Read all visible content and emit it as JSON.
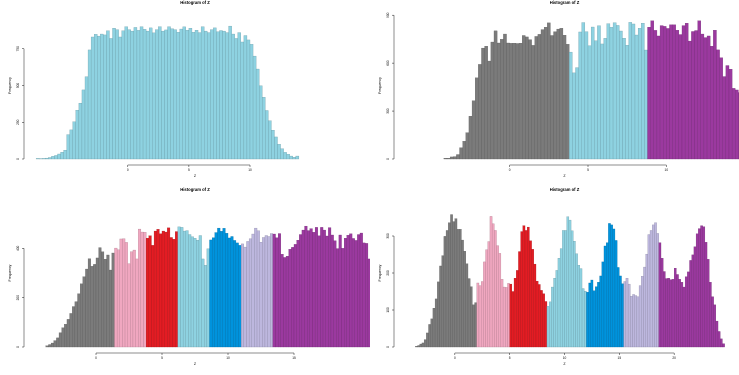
{
  "chart_data": [
    {
      "type": "bar",
      "title": "Histogram of Z",
      "xlabel": "Z",
      "ylabel": "Frequency",
      "xlim": [
        -8,
        19
      ],
      "ylim": [
        0,
        1000
      ],
      "xticks": [
        0,
        5,
        10
      ],
      "xtick_labels": [
        "0",
        "5",
        "10"
      ],
      "yticks": [
        0,
        250,
        500,
        750
      ],
      "ytick_labels": [
        "0",
        "250",
        "500",
        "750"
      ],
      "bin_width": 0.25,
      "bin_start": -7.5,
      "colors": [
        "#8ed2e1"
      ],
      "color_breaks": [],
      "values": [
        4,
        3,
        4,
        6,
        10,
        18,
        24,
        34,
        46,
        60,
        166,
        198,
        253,
        332,
        380,
        470,
        560,
        742,
        830,
        848,
        836,
        850,
        844,
        872,
        820,
        890,
        880,
        830,
        872,
        900,
        880,
        870,
        895,
        875,
        900,
        882,
        870,
        892,
        858,
        880,
        900,
        870,
        878,
        900,
        886,
        880,
        862,
        884,
        899,
        876,
        890,
        862,
        876,
        860,
        900,
        870,
        860,
        880,
        892,
        866,
        874,
        870,
        860,
        904,
        850,
        820,
        860,
        796,
        840,
        810,
        780,
        700,
        612,
        498,
        420,
        330,
        260,
        196,
        150,
        100,
        70,
        45,
        32,
        20,
        12,
        20
      ]
    },
    {
      "type": "bar",
      "title": "Histogram of Z",
      "xlabel": "Z",
      "ylabel": "Frequency",
      "xlim": [
        -7,
        14
      ],
      "ylim": [
        0,
        920
      ],
      "xticks": [
        0,
        5,
        10
      ],
      "xtick_labels": [
        "0",
        "5",
        "10"
      ],
      "yticks": [
        0,
        300,
        600,
        900
      ],
      "ytick_labels": [
        "0",
        "300",
        "600",
        "900"
      ],
      "bin_width": 0.2,
      "bin_start": -4.2,
      "colors": [
        "#7b7b7b",
        "#8ed2e1",
        "#9b399f"
      ],
      "color_breaks": [
        3.8,
        8.8
      ],
      "values": [
        5,
        5,
        13,
        15,
        28,
        71,
        111,
        165,
        268,
        365,
        508,
        592,
        694,
        706,
        613,
        732,
        802,
        726,
        749,
        782,
        726,
        724,
        725,
        723,
        725,
        773,
        764,
        747,
        711,
        767,
        780,
        810,
        825,
        852,
        773,
        797,
        813,
        818,
        775,
        718,
        669,
        539,
        572,
        795,
        854,
        797,
        709,
        826,
        740,
        834,
        720,
        755,
        847,
        824,
        853,
        836,
        801,
        756,
        712,
        855,
        845,
        776,
        818,
        850,
        682,
        825,
        865,
        805,
        770,
        835,
        830,
        817,
        840,
        840,
        806,
        779,
        835,
        850,
        738,
        798,
        804,
        865,
        782,
        760,
        770,
        706,
        806,
        683,
        634,
        516,
        585,
        562,
        442,
        432,
        416,
        399,
        336,
        224,
        238,
        222,
        165,
        138,
        101,
        72,
        57,
        38,
        23,
        14,
        10,
        8
      ]
    },
    {
      "type": "bar",
      "title": "Histogram of Z",
      "xlabel": "Z",
      "ylabel": "Frequency",
      "xlim": [
        -5,
        20
      ],
      "ylim": [
        0,
        600
      ],
      "xticks": [
        0,
        5,
        10,
        15
      ],
      "xtick_labels": [
        "0",
        "5",
        "10",
        "15"
      ],
      "yticks": [
        0,
        200,
        400
      ],
      "ytick_labels": [
        "0",
        "200",
        "400"
      ],
      "bin_width": 0.2,
      "bin_start": -3.8,
      "colors": [
        "#7b7b7b",
        "#f0a7c0",
        "#e31c23",
        "#8ed2e1",
        "#0093dd",
        "#bdb7de",
        "#9b399f"
      ],
      "color_breaks": [
        1.4,
        3.8,
        6.2,
        8.6,
        11.0,
        13.4
      ],
      "values": [
        5,
        10,
        16,
        26,
        37,
        58,
        78,
        92,
        112,
        136,
        164,
        184,
        216,
        256,
        285,
        316,
        358,
        327,
        335,
        361,
        403,
        386,
        356,
        373,
        312,
        381,
        401,
        394,
        438,
        439,
        424,
        338,
        386,
        393,
        357,
        478,
        466,
        465,
        441,
        451,
        412,
        470,
        477,
        459,
        470,
        466,
        483,
        444,
        437,
        468,
        487,
        485,
        470,
        472,
        456,
        447,
        441,
        433,
        452,
        357,
        331,
        398,
        434,
        443,
        464,
        482,
        469,
        481,
        461,
        442,
        448,
        432,
        422,
        412,
        418,
        405,
        428,
        439,
        458,
        482,
        471,
        425,
        444,
        452,
        448,
        460,
        458,
        443,
        460,
        376,
        363,
        368,
        396,
        404,
        416,
        433,
        456,
        474,
        490,
        472,
        480,
        465,
        485,
        451,
        485,
        474,
        450,
        484,
        454,
        431,
        399,
        454,
        400,
        441,
        453,
        459,
        440,
        432,
        456,
        462,
        422,
        420,
        357,
        356,
        342,
        304,
        286,
        288,
        205,
        176,
        138,
        113,
        86,
        64,
        45,
        29,
        18,
        12,
        7,
        4,
        3
      ]
    },
    {
      "type": "bar",
      "title": "Histogram of Z",
      "xlabel": "Z",
      "ylabel": "Frequency",
      "xlim": [
        -5,
        25
      ],
      "ylim": [
        0,
        400
      ],
      "xticks": [
        0,
        5,
        10,
        15,
        20
      ],
      "xtick_labels": [
        "0",
        "5",
        "10",
        "15",
        "20"
      ],
      "yticks": [
        0,
        100,
        200,
        300
      ],
      "ytick_labels": [
        "0",
        "100",
        "200",
        "300"
      ],
      "bin_width": 0.2,
      "bin_start": -3.6,
      "colors": [
        "#7b7b7b",
        "#f0a7c0",
        "#e31c23",
        "#8ed2e1",
        "#0093dd",
        "#bdb7de",
        "#9b399f"
      ],
      "color_breaks": [
        2.0,
        5.0,
        8.4,
        12.0,
        15.4,
        18.6
      ],
      "values": [
        2,
        4,
        8,
        11,
        20,
        38,
        61,
        76,
        105,
        130,
        176,
        219,
        247,
        299,
        315,
        336,
        358,
        339,
        347,
        318,
        318,
        289,
        259,
        225,
        185,
        163,
        114,
        120,
        173,
        166,
        177,
        230,
        263,
        285,
        353,
        333,
        315,
        274,
        253,
        183,
        162,
        161,
        172,
        170,
        150,
        186,
        207,
        258,
        312,
        328,
        315,
        324,
        287,
        264,
        224,
        178,
        169,
        153,
        144,
        123,
        110,
        122,
        162,
        186,
        207,
        240,
        266,
        315,
        315,
        352,
        343,
        314,
        286,
        252,
        221,
        212,
        158,
        151,
        148,
        173,
        181,
        152,
        163,
        175,
        192,
        230,
        273,
        282,
        334,
        330,
        319,
        288,
        215,
        192,
        171,
        177,
        186,
        170,
        137,
        142,
        139,
        136,
        166,
        191,
        216,
        251,
        304,
        315,
        330,
        336,
        307,
        282,
        240,
        204,
        185,
        186,
        182,
        183,
        213,
        196,
        183,
        175,
        162,
        190,
        203,
        234,
        249,
        271,
        306,
        320,
        328,
        325,
        283,
        237,
        175,
        136,
        114,
        70,
        42,
        22,
        9
      ]
    }
  ]
}
